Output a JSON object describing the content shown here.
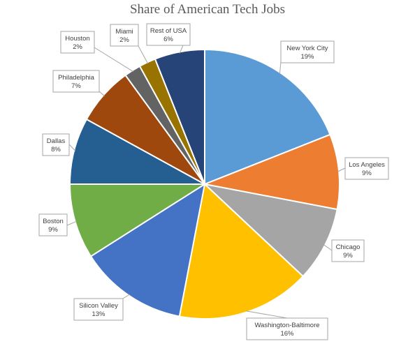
{
  "chart_data": {
    "type": "pie",
    "title": "Share of American Tech Jobs",
    "slices": [
      {
        "name": "New York City",
        "value": 19,
        "label": "19%",
        "color": "#5B9BD5"
      },
      {
        "name": "Los Angeles",
        "value": 9,
        "label": "9%",
        "color": "#ED7D31"
      },
      {
        "name": "Chicago",
        "value": 9,
        "label": "9%",
        "color": "#A5A5A5"
      },
      {
        "name": "Washington-Baltimore",
        "value": 16,
        "label": "16%",
        "color": "#FFC000"
      },
      {
        "name": "Silicon Valley",
        "value": 13,
        "label": "13%",
        "color": "#4472C4"
      },
      {
        "name": "Boston",
        "value": 9,
        "label": "9%",
        "color": "#70AD47"
      },
      {
        "name": "Dallas",
        "value": 8,
        "label": "8%",
        "color": "#255E91"
      },
      {
        "name": "Philadelphia",
        "value": 7,
        "label": "7%",
        "color": "#9E480E"
      },
      {
        "name": "Houston",
        "value": 2,
        "label": "2%",
        "color": "#636363"
      },
      {
        "name": "Miami",
        "value": 2,
        "label": "2%",
        "color": "#997300"
      },
      {
        "name": "Rest of USA",
        "value": 6,
        "label": "6%",
        "color": "#264478"
      }
    ]
  }
}
